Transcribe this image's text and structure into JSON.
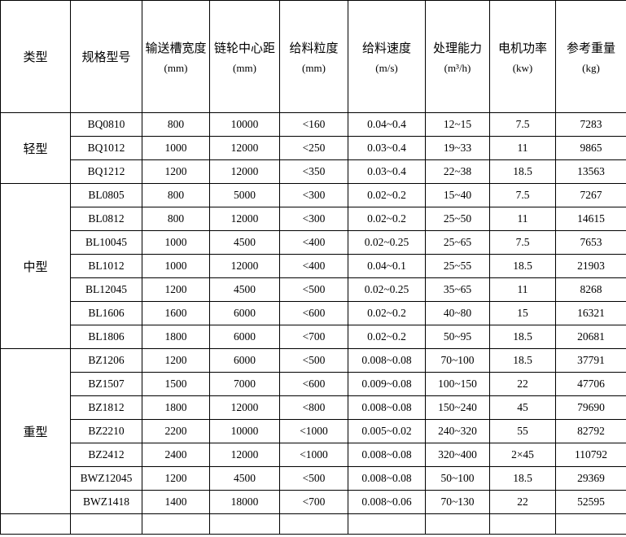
{
  "colors": {
    "background": "#ffffff",
    "border": "#000000",
    "text": "#000000"
  },
  "table": {
    "columns": [
      {
        "label": "类型",
        "unit": ""
      },
      {
        "label": "规格型号",
        "unit": ""
      },
      {
        "label": "输送槽宽度",
        "unit": "(mm)"
      },
      {
        "label": "链轮中心距",
        "unit": "(mm)"
      },
      {
        "label": "给料粒度",
        "unit": "(mm)"
      },
      {
        "label": "给料速度",
        "unit": "(m/s)"
      },
      {
        "label": "处理能力",
        "unit": "(m³/h)"
      },
      {
        "label": "电机功率",
        "unit": "(kw)"
      },
      {
        "label": "参考重量",
        "unit": "(kg)"
      }
    ],
    "groups": [
      {
        "type": "轻型",
        "rows": [
          [
            "BQ0810",
            "800",
            "10000",
            "<160",
            "0.04~0.4",
            "12~15",
            "7.5",
            "7283"
          ],
          [
            "BQ1012",
            "1000",
            "12000",
            "<250",
            "0.03~0.4",
            "19~33",
            "11",
            "9865"
          ],
          [
            "BQ1212",
            "1200",
            "12000",
            "<350",
            "0.03~0.4",
            "22~38",
            "18.5",
            "13563"
          ]
        ]
      },
      {
        "type": "中型",
        "rows": [
          [
            "BL0805",
            "800",
            "5000",
            "<300",
            "0.02~0.2",
            "15~40",
            "7.5",
            "7267"
          ],
          [
            "BL0812",
            "800",
            "12000",
            "<300",
            "0.02~0.2",
            "25~50",
            "11",
            "14615"
          ],
          [
            "BL10045",
            "1000",
            "4500",
            "<400",
            "0.02~0.25",
            "25~65",
            "7.5",
            "7653"
          ],
          [
            "BL1012",
            "1000",
            "12000",
            "<400",
            "0.04~0.1",
            "25~55",
            "18.5",
            "21903"
          ],
          [
            "BL12045",
            "1200",
            "4500",
            "<500",
            "0.02~0.25",
            "35~65",
            "11",
            "8268"
          ],
          [
            "BL1606",
            "1600",
            "6000",
            "<600",
            "0.02~0.2",
            "40~80",
            "15",
            "16321"
          ],
          [
            "BL1806",
            "1800",
            "6000",
            "<700",
            "0.02~0.2",
            "50~95",
            "18.5",
            "20681"
          ]
        ]
      },
      {
        "type": "重型",
        "rows": [
          [
            "BZ1206",
            "1200",
            "6000",
            "<500",
            "0.008~0.08",
            "70~100",
            "18.5",
            "37791"
          ],
          [
            "BZ1507",
            "1500",
            "7000",
            "<600",
            "0.009~0.08",
            "100~150",
            "22",
            "47706"
          ],
          [
            "BZ1812",
            "1800",
            "12000",
            "<800",
            "0.008~0.08",
            "150~240",
            "45",
            "79690"
          ],
          [
            "BZ2210",
            "2200",
            "10000",
            "<1000",
            "0.005~0.02",
            "240~320",
            "55",
            "82792"
          ],
          [
            "BZ2412",
            "2400",
            "12000",
            "<1000",
            "0.008~0.08",
            "320~400",
            "2×45",
            "110792"
          ],
          [
            "BWZ12045",
            "1200",
            "4500",
            "<500",
            "0.008~0.08",
            "50~100",
            "18.5",
            "29369"
          ],
          [
            "BWZ1418",
            "1400",
            "18000",
            "<700",
            "0.008~0.06",
            "70~130",
            "22",
            "52595"
          ]
        ]
      }
    ],
    "has_trailing_empty_row": true
  }
}
